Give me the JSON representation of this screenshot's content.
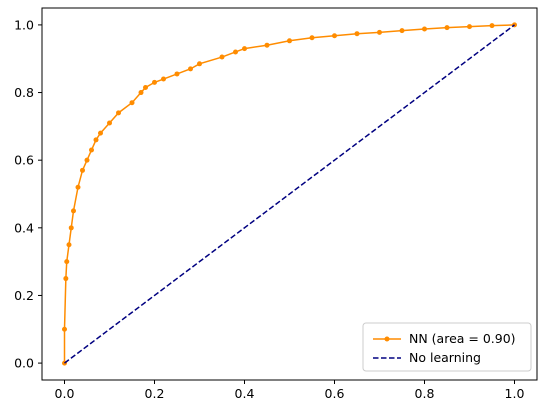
{
  "chart_data": {
    "type": "line",
    "title": "",
    "xlabel": "",
    "ylabel": "",
    "xlim": [
      -0.05,
      1.05
    ],
    "ylim": [
      -0.05,
      1.05
    ],
    "xticks": [
      "0.0",
      "0.2",
      "0.4",
      "0.6",
      "0.8",
      "1.0"
    ],
    "yticks": [
      "0.0",
      "0.2",
      "0.4",
      "0.6",
      "0.8",
      "1.0"
    ],
    "grid": false,
    "legend_position": "lower-right",
    "series": [
      {
        "name": "NN (area = 0.90)",
        "color": "#ff8c00",
        "style": "solid",
        "marker": "dot",
        "x": [
          0.0,
          0.0,
          0.003,
          0.005,
          0.01,
          0.015,
          0.02,
          0.03,
          0.04,
          0.05,
          0.06,
          0.07,
          0.08,
          0.1,
          0.12,
          0.15,
          0.17,
          0.18,
          0.2,
          0.22,
          0.25,
          0.28,
          0.3,
          0.35,
          0.38,
          0.4,
          0.45,
          0.5,
          0.55,
          0.6,
          0.65,
          0.7,
          0.75,
          0.8,
          0.85,
          0.9,
          0.95,
          1.0
        ],
        "y": [
          0.0,
          0.1,
          0.25,
          0.3,
          0.35,
          0.4,
          0.45,
          0.52,
          0.57,
          0.6,
          0.63,
          0.66,
          0.68,
          0.71,
          0.74,
          0.77,
          0.8,
          0.815,
          0.83,
          0.84,
          0.855,
          0.87,
          0.885,
          0.905,
          0.92,
          0.93,
          0.94,
          0.953,
          0.962,
          0.968,
          0.974,
          0.978,
          0.983,
          0.988,
          0.992,
          0.995,
          0.998,
          1.0
        ]
      },
      {
        "name": "No learning",
        "color": "#000080",
        "style": "dashed",
        "marker": "none",
        "x": [
          0.0,
          1.0
        ],
        "y": [
          0.0,
          1.0
        ]
      }
    ]
  }
}
